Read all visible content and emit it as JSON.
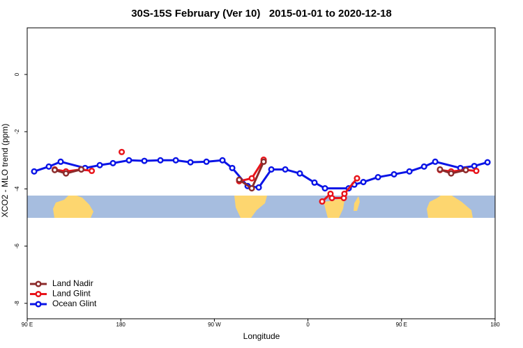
{
  "chart_data": {
    "type": "line",
    "title": "30S-15S February (Ver 10)   2015-01-01 to 2020-12-18",
    "x_label": "Longitude",
    "y_label": "XCO2 - MLO trend (ppm)",
    "xlim": [
      90,
      540
    ],
    "ylim": [
      -8.54,
      1.63
    ],
    "xticks": [
      {
        "value": 90,
        "label": "90 E"
      },
      {
        "value": 180,
        "label": "180"
      },
      {
        "value": 270,
        "label": "90 W"
      },
      {
        "value": 360,
        "label": "0"
      },
      {
        "value": 450,
        "label": "90 E"
      },
      {
        "value": 540,
        "label": "180"
      }
    ],
    "yticks": [
      0,
      -2,
      -4,
      -6,
      -8
    ],
    "legend": "bottom-left",
    "series": [
      {
        "name": "Land Nadir",
        "color": "#8b2b2b",
        "x": [
          116.5,
          127.3,
          142.0,
          null,
          293.9,
          306.0,
          317.4,
          null,
          487.0,
          497.7,
          511.8
        ],
        "values": [
          -3.34,
          -3.46,
          -3.32,
          null,
          -3.68,
          -3.98,
          -3.05,
          null,
          -3.32,
          -3.46,
          -3.34
        ]
      },
      {
        "name": "Land Glint",
        "color": "#e8141b",
        "x": [
          116.5,
          127.3,
          142.0,
          152.1,
          null,
          180.9,
          null,
          293.9,
          306.0,
          317.4,
          null,
          373.7,
          381.7,
          383.1,
          394.5,
          395.1,
          407.2,
          null,
          487.0,
          497.7,
          511.8,
          521.9
        ],
        "values": [
          -3.32,
          -3.39,
          -3.32,
          -3.37,
          null,
          -2.71,
          null,
          -3.73,
          -3.63,
          -2.98,
          null,
          -4.44,
          -4.17,
          -4.32,
          -4.32,
          -4.17,
          -3.63,
          null,
          -3.34,
          -3.39,
          -3.34,
          -3.37
        ]
      },
      {
        "name": "Ocean Glint",
        "color": "#0a14e6",
        "x": [
          96.7,
          110.8,
          122.2,
          145.7,
          159.8,
          172.5,
          187.9,
          202.7,
          218.1,
          232.9,
          247.0,
          262.4,
          277.8,
          287.2,
          302.0,
          312.7,
          324.8,
          338.2,
          352.2,
          366.3,
          376.4,
          399.2,
          404.6,
          413.3,
          427.4,
          442.8,
          457.6,
          471.7,
          482.4,
          506.6,
          520.0,
          532.7
        ],
        "values": [
          -3.39,
          -3.22,
          -3.05,
          -3.27,
          -3.17,
          -3.1,
          -3.0,
          -3.02,
          -3.0,
          -3.0,
          -3.07,
          -3.05,
          -3.0,
          -3.27,
          -3.9,
          -3.95,
          -3.32,
          -3.32,
          -3.46,
          -3.78,
          -3.98,
          -3.98,
          -3.85,
          -3.76,
          -3.59,
          -3.49,
          -3.39,
          -3.22,
          -3.05,
          -3.27,
          -3.2,
          -3.07
        ]
      }
    ]
  }
}
